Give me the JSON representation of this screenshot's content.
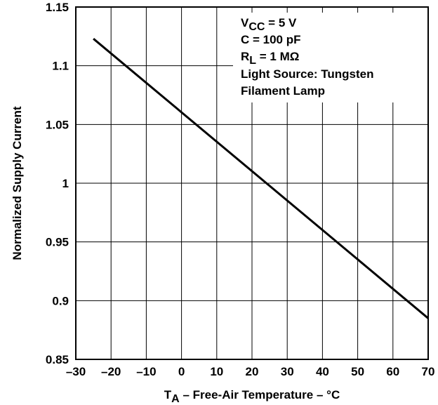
{
  "chart_data": {
    "type": "line",
    "title": "",
    "xlabel_main": "T",
    "xlabel_sub": "A",
    "xlabel_rest": " – Free-Air Temperature – °C",
    "ylabel": "Normalized Supply Current",
    "xlim": [
      -30,
      70
    ],
    "ylim": [
      0.85,
      1.15
    ],
    "x_ticks": [
      "–30",
      "–20",
      "–10",
      "0",
      "10",
      "20",
      "30",
      "40",
      "50",
      "60",
      "70"
    ],
    "y_ticks": [
      "0.85",
      "0.9",
      "0.95",
      "1",
      "1.05",
      "1.1",
      "1.15"
    ],
    "grid": true,
    "series": [
      {
        "x": [
          -25,
          70
        ],
        "y": [
          1.123,
          0.885
        ]
      }
    ],
    "annotation": {
      "line1_main": "V",
      "line1_sub": "CC",
      "line1_rest": " = 5 V",
      "line2": "C = 100 pF",
      "line3_main": "R",
      "line3_sub": "L",
      "line3_rest": " = 1 MΩ",
      "line4": "Light Source: Tungsten",
      "line5": "Filament Lamp"
    }
  }
}
